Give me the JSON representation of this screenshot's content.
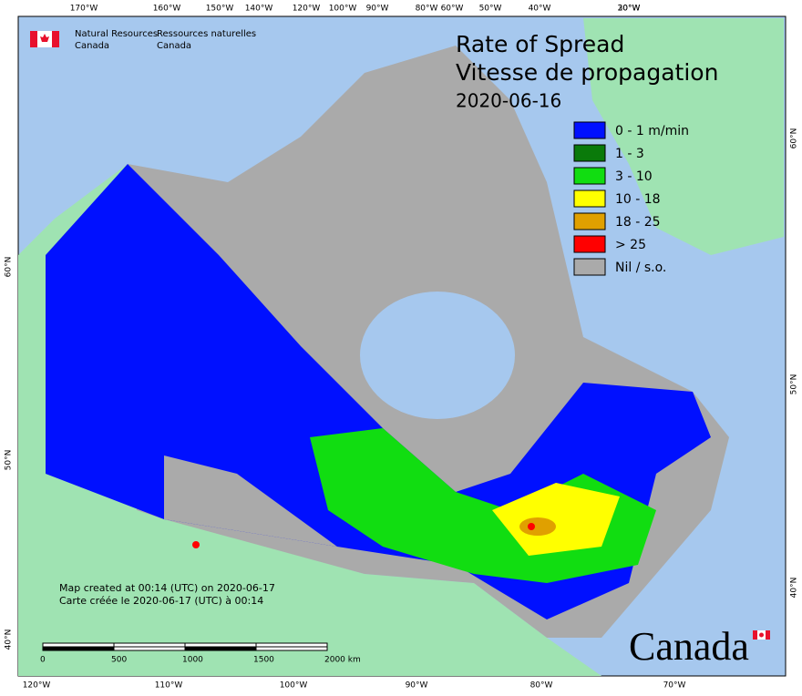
{
  "header": {
    "department_en": [
      "Natural Resources",
      "Canada"
    ],
    "department_fr": [
      "Ressources naturelles",
      "Canada"
    ]
  },
  "title": [
    "Rate of Spread",
    "Vitesse de propagation"
  ],
  "date": "2020-06-16",
  "legend": [
    {
      "label": "0 - 1 m/min",
      "color": "#0010ff"
    },
    {
      "label": "1 - 3",
      "color": "#0a7a0a"
    },
    {
      "label": "3 - 10",
      "color": "#11dd11"
    },
    {
      "label": "10 - 18",
      "color": "#ffff00"
    },
    {
      "label": "18 - 25",
      "color": "#e0a000"
    },
    {
      "label": "> 25",
      "color": "#ff0000"
    },
    {
      "label": "Nil / s.o.",
      "color": "#aaaaaa"
    }
  ],
  "graticule": {
    "top": [
      "170°W",
      "160°W",
      "150°W",
      "140°W",
      "120°W",
      "100°W",
      "90°W",
      "80°W",
      "60°W",
      "50°W",
      "40°W",
      "30°W",
      "20°W"
    ],
    "bottom": [
      "120°W",
      "110°W",
      "100°W",
      "90°W",
      "80°W",
      "70°W"
    ],
    "left": [
      "60°N",
      "50°N",
      "40°N"
    ],
    "right": [
      "60°N",
      "50°N",
      "40°N"
    ]
  },
  "notes": [
    "Map created at 00:14 (UTC) on 2020-06-17",
    "Carte créée le 2020-06-17 (UTC) à 00:14"
  ],
  "scale_bar": [
    "0",
    "500",
    "1000",
    "1500",
    "2000 km"
  ],
  "wordmark": "Canada"
}
